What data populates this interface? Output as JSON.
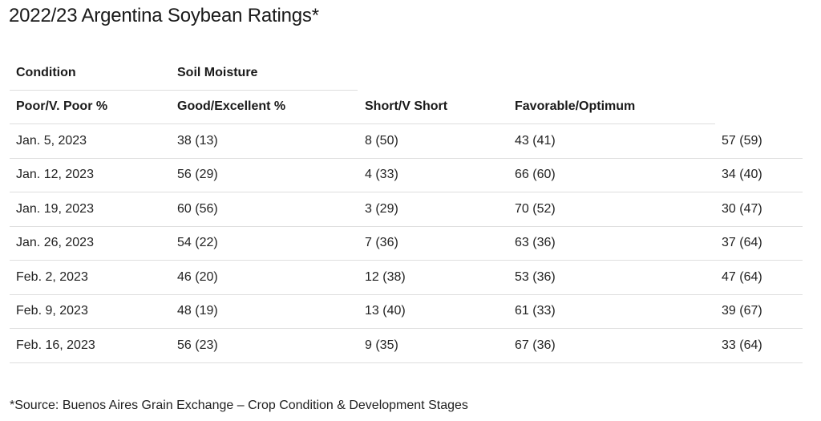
{
  "title": "2022/23 Argentina Soybean Ratings*",
  "table": {
    "header_row1": [
      "Condition",
      "Soil Moisture"
    ],
    "header_row2": [
      "Poor/V. Poor %",
      "Good/Excellent %",
      "Short/V Short",
      "Favorable/Optimum"
    ],
    "rows": [
      [
        "Jan. 5, 2023",
        "38 (13)",
        "8 (50)",
        "43 (41)",
        "57 (59)"
      ],
      [
        "Jan. 12, 2023",
        "56 (29)",
        "4 (33)",
        "66 (60)",
        "34 (40)"
      ],
      [
        "Jan. 19, 2023",
        "60 (56)",
        "3 (29)",
        "70 (52)",
        "30 (47)"
      ],
      [
        "Jan. 26, 2023",
        "54 (22)",
        "7 (36)",
        "63 (36)",
        "37 (64)"
      ],
      [
        "Feb. 2, 2023",
        "46 (20)",
        "12 (38)",
        "53 (36)",
        "47 (64)"
      ],
      [
        "Feb. 9, 2023",
        "48 (19)",
        "13 (40)",
        "61 (33)",
        "39 (67)"
      ],
      [
        "Feb. 16, 2023",
        "56 (23)",
        "9 (35)",
        "67 (36)",
        "33 (64)"
      ]
    ]
  },
  "footnote": "*Source: Buenos Aires Grain Exchange – Crop Condition & Development Stages"
}
